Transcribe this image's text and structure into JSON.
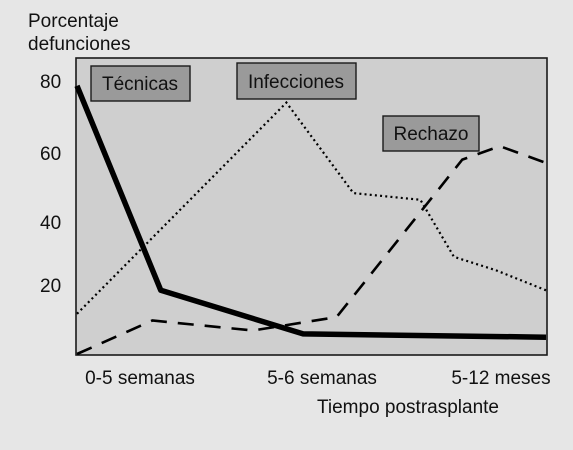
{
  "chart_data": {
    "type": "line",
    "ylabel_lines": [
      "Porcentaje",
      "defunciones"
    ],
    "xlabel": "Tiempo postrasplante",
    "x_ticks": [
      "0-5 semanas",
      "5-6 semanas",
      "5-12 meses"
    ],
    "y_ticks": [
      20,
      40,
      60,
      80
    ],
    "ylim": [
      0,
      88
    ],
    "grid": false,
    "series": [
      {
        "name": "Técnicas",
        "style": "solid-thick",
        "color": "#000000",
        "x": [
          0,
          1,
          2.7,
          5.6
        ],
        "y": [
          80,
          19,
          6,
          5
        ]
      },
      {
        "name": "Infecciones",
        "style": "dotted",
        "color": "#000000",
        "x": [
          0,
          2.5,
          3.3,
          4.1,
          4.5,
          5,
          5.6
        ],
        "y": [
          12,
          75,
          48,
          46,
          29,
          25,
          19
        ]
      },
      {
        "name": "Rechazo",
        "style": "dashed",
        "color": "#000000",
        "x": [
          0,
          0.9,
          2.1,
          3.1,
          4.6,
          5.05,
          5.6
        ],
        "y": [
          0,
          10,
          7,
          11,
          58,
          62,
          57
        ]
      }
    ],
    "annotations": [
      "Técnicas",
      "Infecciones",
      "Rechazo"
    ]
  }
}
